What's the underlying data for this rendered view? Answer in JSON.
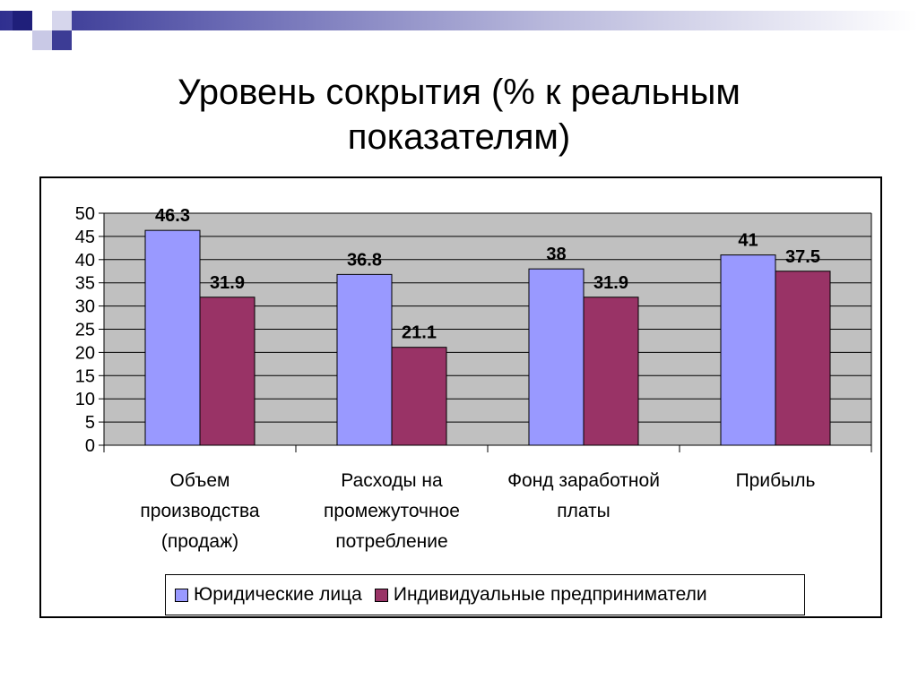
{
  "title_line1": "Уровень сокрытия (% к реальным",
  "title_line2": "показателям)",
  "colors": {
    "series1": "#9999ff",
    "series2": "#993366",
    "plot_bg": "#c0c0c0",
    "grid": "#000000"
  },
  "chart_data": {
    "type": "bar",
    "categories": [
      [
        "Объем",
        "производства",
        "(продаж)"
      ],
      [
        "Расходы на",
        "промежуточное",
        "потребление"
      ],
      [
        "Фонд заработной",
        "платы"
      ],
      [
        "Прибыль"
      ]
    ],
    "series": [
      {
        "name": "Юридические лица",
        "values": [
          46.3,
          36.8,
          38,
          41
        ],
        "labels": [
          "46.3",
          "36.8",
          "38",
          "41"
        ]
      },
      {
        "name": "Индивидуальные предприниматели",
        "values": [
          31.9,
          21.1,
          31.9,
          37.5
        ],
        "labels": [
          "31.9",
          "21.1",
          "31.9",
          "37.5"
        ]
      }
    ],
    "ylim": [
      0,
      50
    ],
    "yticks": [
      "0",
      "5",
      "10",
      "15",
      "20",
      "25",
      "30",
      "35",
      "40",
      "45",
      "50"
    ],
    "grid": true,
    "legend_position": "bottom"
  }
}
